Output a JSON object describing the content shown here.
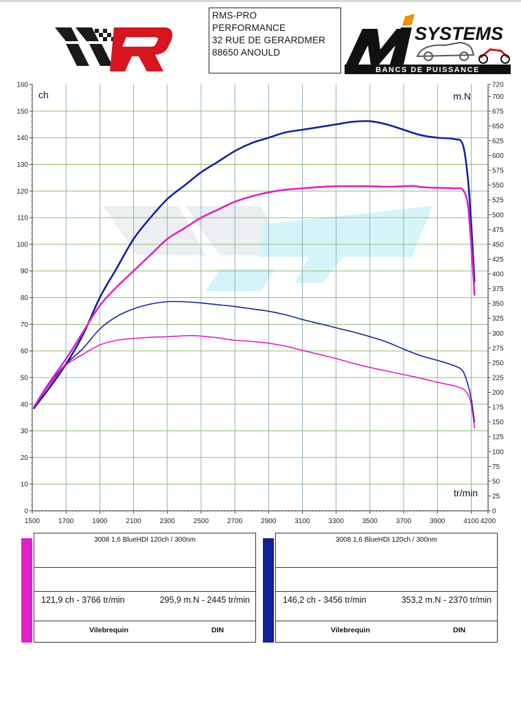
{
  "header": {
    "address_lines": [
      "RMS-PRO",
      "PERFORMANCE",
      "32 RUE DE GERARDMER",
      "88650 ANOULD"
    ],
    "right_logo_text": "SYSTEMS",
    "right_logo_tagline": "BANCS DE PUISSANCE"
  },
  "colors": {
    "magenta": "#e020c8",
    "navy": "#12229a",
    "grid": "#8cbf6a",
    "watermark": "#7fe0f0"
  },
  "chart_data": {
    "type": "line",
    "left_axis": {
      "label": "ch",
      "ylim": [
        0,
        160
      ],
      "ticks": [
        0,
        10,
        20,
        30,
        40,
        50,
        60,
        70,
        80,
        90,
        100,
        110,
        120,
        130,
        140,
        150,
        160
      ]
    },
    "right_axis": {
      "label": "m.N",
      "ylim": [
        0,
        720
      ],
      "ticks": [
        0,
        25,
        50,
        75,
        100,
        125,
        150,
        175,
        200,
        225,
        250,
        275,
        300,
        325,
        350,
        375,
        400,
        425,
        450,
        475,
        500,
        525,
        550,
        575,
        600,
        625,
        650,
        675,
        700,
        720
      ]
    },
    "x_axis": {
      "label": "tr/min",
      "xlim": [
        1500,
        4200
      ],
      "ticks": [
        1500,
        1700,
        1900,
        2100,
        2300,
        2500,
        2700,
        2900,
        3100,
        3300,
        3500,
        3700,
        3900,
        4100,
        4200
      ]
    },
    "series": [
      {
        "color": "#12229a",
        "axis": "right",
        "x": [
          1510,
          1600,
          1700,
          1800,
          1900,
          2000,
          2100,
          2200,
          2300,
          2400,
          2500,
          2600,
          2700,
          2800,
          2900,
          3000,
          3100,
          3200,
          3300,
          3400,
          3500,
          3600,
          3700,
          3800,
          3900,
          4000,
          4050,
          4080,
          4100,
          4120
        ],
        "y": [
          173,
          214,
          248,
          274,
          307,
          328,
          341,
          349,
          353,
          353,
          351,
          348,
          345,
          341,
          337,
          331,
          323,
          316,
          309,
          302,
          294,
          285,
          273,
          262,
          254,
          245,
          236,
          214,
          190,
          150
        ]
      },
      {
        "color": "#12229a",
        "axis": "left",
        "x": [
          1510,
          1600,
          1700,
          1800,
          1900,
          2000,
          2100,
          2200,
          2300,
          2400,
          2500,
          2600,
          2700,
          2800,
          2900,
          3000,
          3100,
          3200,
          3300,
          3400,
          3500,
          3600,
          3700,
          3800,
          3900,
          4000,
          4050,
          4080,
          4100,
          4120
        ],
        "y": [
          38.5,
          46,
          55,
          66,
          80,
          91,
          102,
          110,
          117,
          122,
          127,
          131,
          135,
          138,
          140,
          142,
          143,
          144,
          145,
          146,
          146.2,
          145,
          143,
          141,
          140,
          139.5,
          137.5,
          125,
          108,
          86
        ]
      },
      {
        "color": "#e020c8",
        "axis": "right",
        "x": [
          1510,
          1600,
          1700,
          1800,
          1900,
          2000,
          2100,
          2200,
          2300,
          2400,
          2445,
          2500,
          2600,
          2700,
          2800,
          2900,
          3000,
          3100,
          3200,
          3300,
          3400,
          3500,
          3600,
          3700,
          3800,
          3900,
          4000,
          4050,
          4080,
          4100,
          4120
        ],
        "y": [
          175,
          212,
          246,
          264,
          280,
          288,
          291,
          293,
          294,
          295.5,
          295.9,
          295,
          292,
          288,
          286,
          283,
          278,
          271,
          264,
          257,
          249,
          242,
          236,
          230,
          224,
          217,
          211,
          206,
          197,
          180,
          140
        ]
      },
      {
        "color": "#e020c8",
        "axis": "left",
        "x": [
          1510,
          1600,
          1700,
          1800,
          1900,
          2000,
          2100,
          2200,
          2300,
          2400,
          2500,
          2600,
          2700,
          2800,
          2900,
          3000,
          3100,
          3200,
          3300,
          3400,
          3500,
          3600,
          3700,
          3766,
          3800,
          3900,
          4000,
          4050,
          4080,
          4100,
          4120
        ],
        "y": [
          39,
          48,
          57,
          67,
          77,
          84,
          90,
          96,
          102,
          106,
          110,
          113,
          116,
          118,
          119.5,
          120.5,
          121,
          121.5,
          121.8,
          121.8,
          121.8,
          121.6,
          121.8,
          121.9,
          121.5,
          121.2,
          121,
          120.5,
          115,
          100,
          81
        ]
      }
    ]
  },
  "panels": [
    {
      "color": "#e020c8",
      "title": "3008 1,6 BlueHDI 120ch / 300nm",
      "power": "121,9 ch - 3766 tr/min",
      "torque": "295,9 m.N - 2445 tr/min",
      "crank": "Vilebrequin",
      "standard": "DIN"
    },
    {
      "color": "#12229a",
      "title": "3008 1,6 BlueHDI 120ch / 300nm",
      "power": "146,2 ch - 3456 tr/min",
      "torque": "353,2 m.N - 2370 tr/min",
      "crank": "Vilebrequin",
      "standard": "DIN"
    }
  ]
}
